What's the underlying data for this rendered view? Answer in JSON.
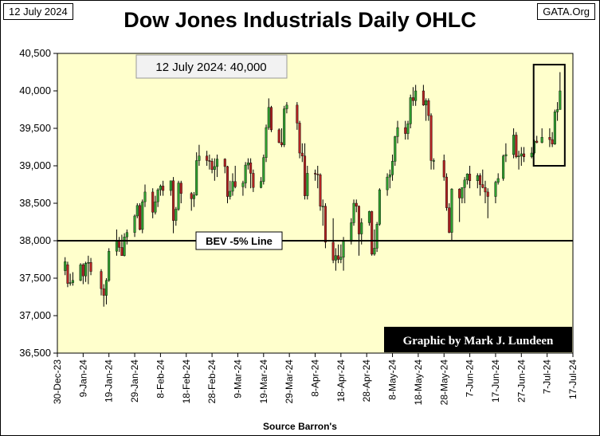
{
  "header": {
    "date_label": "12 July 2024",
    "site_label": "GATA.Org",
    "title": "Dow Jones Industrials Daily OHLC"
  },
  "footer": {
    "source": "Source Barron's"
  },
  "colors": {
    "plot_bg": "#ffffcc",
    "up": "#2e9e2e",
    "down": "#b22222",
    "wick": "#000000"
  },
  "chart_data": {
    "type": "candlestick",
    "title": "Dow Jones Industrials Daily OHLC",
    "xlabel": "Source Barron's",
    "ylabel": "",
    "ylim": [
      36500,
      40500
    ],
    "yticks": [
      36500,
      37000,
      37500,
      38000,
      38500,
      39000,
      39500,
      40000,
      40500
    ],
    "ytick_labels": [
      "36,500",
      "37,000",
      "37,500",
      "38,000",
      "38,500",
      "39,000",
      "39,500",
      "40,000",
      "40,500"
    ],
    "xlim": [
      "2023-12-30",
      "2024-07-17"
    ],
    "xticks": [
      "2023-12-30",
      "2024-01-09",
      "2024-01-19",
      "2024-01-29",
      "2024-02-08",
      "2024-02-18",
      "2024-02-28",
      "2024-03-09",
      "2024-03-19",
      "2024-03-29",
      "2024-04-08",
      "2024-04-18",
      "2024-04-28",
      "2024-05-08",
      "2024-05-18",
      "2024-05-28",
      "2024-06-07",
      "2024-06-17",
      "2024-06-27",
      "2024-07-07",
      "2024-07-17"
    ],
    "xtick_labels": [
      "30-Dec-23",
      "9-Jan-24",
      "19-Jan-24",
      "29-Jan-24",
      "8-Feb-24",
      "18-Feb-24",
      "28-Feb-24",
      "9-Mar-24",
      "19-Mar-24",
      "29-Mar-24",
      "8-Apr-24",
      "18-Apr-24",
      "28-Apr-24",
      "8-May-24",
      "18-May-24",
      "28-May-24",
      "7-Jun-24",
      "17-Jun-24",
      "27-Jun-24",
      "7-Jul-24",
      "17-Jul-24"
    ],
    "grid": false,
    "reference_line": {
      "value": 38000,
      "label": "BEV -5% Line"
    },
    "annotation": {
      "text": "12 July 2024:  40,000",
      "date": "2024-07-12",
      "value": 40000
    },
    "highlight_box": {
      "x_start": "2024-07-03",
      "x_end": "2024-07-12",
      "y_low": 39000,
      "y_high": 40350
    },
    "credit": "Graphic by Mark J. Lundeen",
    "series": [
      [
        "2024-01-02",
        37600,
        37780,
        37540,
        37720
      ],
      [
        "2024-01-03",
        37680,
        37720,
        37380,
        37430
      ],
      [
        "2024-01-04",
        37430,
        37560,
        37400,
        37440
      ],
      [
        "2024-01-05",
        37440,
        37580,
        37400,
        37470
      ],
      [
        "2024-01-08",
        37470,
        37700,
        37460,
        37680
      ],
      [
        "2024-01-09",
        37680,
        37700,
        37420,
        37530
      ],
      [
        "2024-01-10",
        37530,
        37720,
        37450,
        37700
      ],
      [
        "2024-01-11",
        37700,
        37800,
        37420,
        37710
      ],
      [
        "2024-01-12",
        37710,
        37770,
        37540,
        37590
      ],
      [
        "2024-01-16",
        37590,
        37620,
        37270,
        37360
      ],
      [
        "2024-01-17",
        37360,
        37420,
        37120,
        37270
      ],
      [
        "2024-01-18",
        37270,
        37500,
        37150,
        37470
      ],
      [
        "2024-01-19",
        37470,
        37900,
        37450,
        37860
      ],
      [
        "2024-01-22",
        37860,
        38150,
        37800,
        38000
      ],
      [
        "2024-01-23",
        38000,
        38050,
        37850,
        37910
      ],
      [
        "2024-01-24",
        37910,
        38080,
        37800,
        37800
      ],
      [
        "2024-01-25",
        37800,
        38100,
        37790,
        38050
      ],
      [
        "2024-01-26",
        38050,
        38150,
        37950,
        38110
      ],
      [
        "2024-01-29",
        38110,
        38350,
        38050,
        38330
      ],
      [
        "2024-01-30",
        38330,
        38500,
        38300,
        38470
      ],
      [
        "2024-01-31",
        38470,
        38500,
        38140,
        38150
      ],
      [
        "2024-02-01",
        38150,
        38550,
        38100,
        38520
      ],
      [
        "2024-02-02",
        38520,
        38750,
        38450,
        38650
      ],
      [
        "2024-02-05",
        38650,
        38700,
        38300,
        38380
      ],
      [
        "2024-02-06",
        38380,
        38600,
        38350,
        38520
      ],
      [
        "2024-02-07",
        38520,
        38700,
        38450,
        38680
      ],
      [
        "2024-02-08",
        38680,
        38750,
        38600,
        38730
      ],
      [
        "2024-02-09",
        38730,
        38800,
        38600,
        38670
      ],
      [
        "2024-02-12",
        38670,
        38800,
        38600,
        38800
      ],
      [
        "2024-02-13",
        38800,
        38850,
        38100,
        38270
      ],
      [
        "2024-02-14",
        38270,
        38450,
        38200,
        38420
      ],
      [
        "2024-02-15",
        38420,
        38800,
        38400,
        38770
      ],
      [
        "2024-02-16",
        38770,
        38800,
        38500,
        38630
      ],
      [
        "2024-02-20",
        38630,
        38650,
        38400,
        38560
      ],
      [
        "2024-02-21",
        38560,
        38650,
        38450,
        38610
      ],
      [
        "2024-02-22",
        38610,
        39180,
        38600,
        39070
      ],
      [
        "2024-02-23",
        39070,
        39280,
        39000,
        39130
      ],
      [
        "2024-02-26",
        39130,
        39200,
        39000,
        39070
      ],
      [
        "2024-02-27",
        39070,
        39150,
        38950,
        39060
      ],
      [
        "2024-02-28",
        39060,
        39100,
        38900,
        38950
      ],
      [
        "2024-02-29",
        38950,
        39100,
        38800,
        38990
      ],
      [
        "2024-03-01",
        38990,
        39150,
        38850,
        39090
      ],
      [
        "2024-03-04",
        39090,
        39100,
        38900,
        38990
      ],
      [
        "2024-03-05",
        38990,
        39000,
        38500,
        38590
      ],
      [
        "2024-03-06",
        38590,
        38800,
        38550,
        38660
      ],
      [
        "2024-03-07",
        38660,
        38900,
        38600,
        38790
      ],
      [
        "2024-03-08",
        38790,
        39000,
        38700,
        38720
      ],
      [
        "2024-03-11",
        38720,
        38800,
        38600,
        38770
      ],
      [
        "2024-03-12",
        38770,
        39050,
        38700,
        39010
      ],
      [
        "2024-03-13",
        39010,
        39100,
        38950,
        39040
      ],
      [
        "2024-03-14",
        39040,
        39100,
        38700,
        38900
      ],
      [
        "2024-03-15",
        38900,
        38950,
        38650,
        38710
      ],
      [
        "2024-03-18",
        38710,
        38850,
        38700,
        38790
      ],
      [
        "2024-03-19",
        38790,
        39150,
        38750,
        39110
      ],
      [
        "2024-03-20",
        39110,
        39550,
        39050,
        39510
      ],
      [
        "2024-03-21",
        39510,
        39900,
        39480,
        39780
      ],
      [
        "2024-03-22",
        39780,
        39800,
        39450,
        39480
      ],
      [
        "2024-03-25",
        39480,
        39500,
        39300,
        39310
      ],
      [
        "2024-03-26",
        39310,
        39500,
        39250,
        39280
      ],
      [
        "2024-03-27",
        39280,
        39800,
        39250,
        39760
      ],
      [
        "2024-03-28",
        39760,
        39850,
        39700,
        39810
      ],
      [
        "2024-04-01",
        39810,
        39850,
        39480,
        39570
      ],
      [
        "2024-04-02",
        39570,
        39600,
        39100,
        39170
      ],
      [
        "2024-04-03",
        39170,
        39300,
        39050,
        39130
      ],
      [
        "2024-04-04",
        39130,
        39300,
        38550,
        38600
      ],
      [
        "2024-04-05",
        38600,
        39000,
        38550,
        38900
      ],
      [
        "2024-04-08",
        38900,
        38950,
        38800,
        38890
      ],
      [
        "2024-04-09",
        38890,
        39000,
        38700,
        38880
      ],
      [
        "2024-04-10",
        38880,
        38900,
        38400,
        38460
      ],
      [
        "2024-04-11",
        38460,
        38550,
        38200,
        38460
      ],
      [
        "2024-04-12",
        38460,
        38500,
        37900,
        37980
      ],
      [
        "2024-04-15",
        37980,
        38300,
        37700,
        37740
      ],
      [
        "2024-04-16",
        37740,
        37900,
        37600,
        37800
      ],
      [
        "2024-04-17",
        37800,
        37950,
        37700,
        37750
      ],
      [
        "2024-04-18",
        37750,
        37950,
        37700,
        37780
      ],
      [
        "2024-04-19",
        37780,
        38050,
        37600,
        37990
      ],
      [
        "2024-04-22",
        37990,
        38300,
        37950,
        38240
      ],
      [
        "2024-04-23",
        38240,
        38550,
        38200,
        38500
      ],
      [
        "2024-04-24",
        38500,
        38550,
        38380,
        38460
      ],
      [
        "2024-04-25",
        38460,
        38470,
        37800,
        38090
      ],
      [
        "2024-04-26",
        38090,
        38300,
        37950,
        38240
      ],
      [
        "2024-04-29",
        38240,
        38400,
        38200,
        38390
      ],
      [
        "2024-04-30",
        38390,
        38400,
        37800,
        37820
      ],
      [
        "2024-05-01",
        37820,
        38150,
        37800,
        37900
      ],
      [
        "2024-05-02",
        37900,
        38250,
        37850,
        38220
      ],
      [
        "2024-05-03",
        38220,
        38700,
        38200,
        38680
      ],
      [
        "2024-05-06",
        38680,
        38900,
        38600,
        38850
      ],
      [
        "2024-05-07",
        38850,
        38950,
        38700,
        38880
      ],
      [
        "2024-05-08",
        38880,
        39150,
        38800,
        39060
      ],
      [
        "2024-05-09",
        39060,
        39400,
        39000,
        39390
      ],
      [
        "2024-05-10",
        39390,
        39600,
        39300,
        39510
      ],
      [
        "2024-05-13",
        39510,
        39600,
        39350,
        39430
      ],
      [
        "2024-05-14",
        39430,
        39600,
        39350,
        39560
      ],
      [
        "2024-05-15",
        39560,
        39950,
        39500,
        39910
      ],
      [
        "2024-05-16",
        39910,
        40050,
        39800,
        39870
      ],
      [
        "2024-05-17",
        39870,
        40080,
        39800,
        40000
      ],
      [
        "2024-05-20",
        40000,
        40080,
        39800,
        39810
      ],
      [
        "2024-05-21",
        39810,
        39900,
        39600,
        39870
      ],
      [
        "2024-05-22",
        39870,
        39900,
        39600,
        39670
      ],
      [
        "2024-05-23",
        39670,
        39700,
        38950,
        39070
      ],
      [
        "2024-05-24",
        39070,
        39100,
        38950,
        39070
      ],
      [
        "2024-05-28",
        39070,
        39150,
        38800,
        38850
      ],
      [
        "2024-05-29",
        38850,
        38900,
        38400,
        38440
      ],
      [
        "2024-05-30",
        38440,
        38500,
        38100,
        38110
      ],
      [
        "2024-05-31",
        38110,
        38700,
        38000,
        38690
      ],
      [
        "2024-06-03",
        38690,
        38700,
        38250,
        38570
      ],
      [
        "2024-06-04",
        38570,
        38700,
        38500,
        38710
      ],
      [
        "2024-06-05",
        38710,
        38850,
        38500,
        38810
      ],
      [
        "2024-06-06",
        38810,
        38900,
        38750,
        38890
      ],
      [
        "2024-06-07",
        38890,
        39000,
        38700,
        38800
      ],
      [
        "2024-06-10",
        38800,
        38900,
        38700,
        38870
      ],
      [
        "2024-06-11",
        38870,
        38900,
        38600,
        38750
      ],
      [
        "2024-06-12",
        38750,
        38950,
        38700,
        38710
      ],
      [
        "2024-06-13",
        38710,
        38800,
        38500,
        38650
      ],
      [
        "2024-06-14",
        38650,
        38700,
        38300,
        38590
      ],
      [
        "2024-06-17",
        38590,
        38800,
        38500,
        38780
      ],
      [
        "2024-06-18",
        38780,
        38900,
        38750,
        38830
      ],
      [
        "2024-06-20",
        38830,
        39150,
        38800,
        39130
      ],
      [
        "2024-06-21",
        39130,
        39300,
        39050,
        39150
      ],
      [
        "2024-06-24",
        39150,
        39500,
        39100,
        39410
      ],
      [
        "2024-06-25",
        39410,
        39450,
        39100,
        39120
      ],
      [
        "2024-06-26",
        39120,
        39200,
        38950,
        39130
      ],
      [
        "2024-06-27",
        39130,
        39250,
        39000,
        39160
      ],
      [
        "2024-06-28",
        39160,
        39250,
        39050,
        39120
      ],
      [
        "2024-07-01",
        39120,
        39250,
        39100,
        39170
      ],
      [
        "2024-07-02",
        39170,
        39350,
        39150,
        39330
      ],
      [
        "2024-07-03",
        39330,
        39400,
        39300,
        39310
      ],
      [
        "2024-07-05",
        39310,
        39500,
        39300,
        39380
      ],
      [
        "2024-07-08",
        39380,
        39500,
        39250,
        39350
      ],
      [
        "2024-07-09",
        39350,
        39450,
        39250,
        39290
      ],
      [
        "2024-07-10",
        39290,
        39750,
        39280,
        39720
      ],
      [
        "2024-07-11",
        39720,
        39850,
        39600,
        39750
      ],
      [
        "2024-07-12",
        39750,
        40250,
        39750,
        40000
      ]
    ]
  }
}
